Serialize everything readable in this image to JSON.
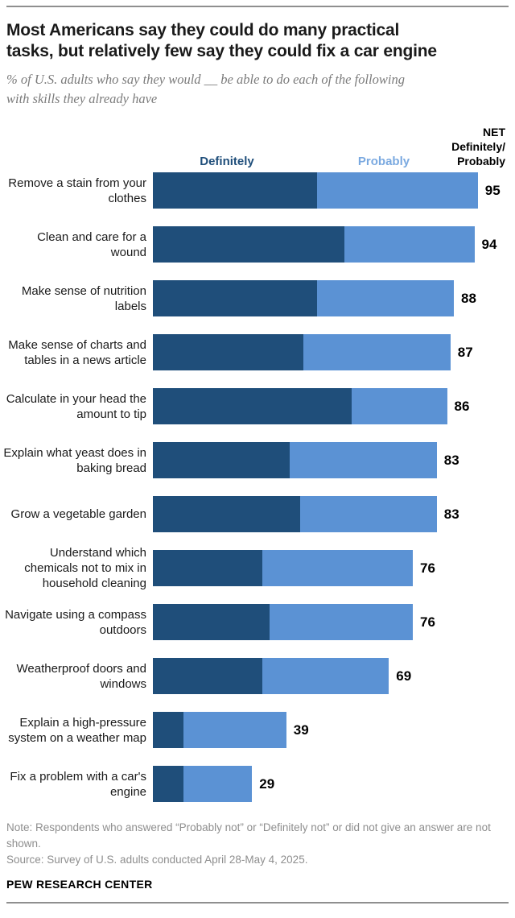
{
  "header": {
    "title_lines": [
      "Most Americans say they could do many practical",
      "tasks, but relatively few say they could fix a car engine"
    ],
    "subtitle_lines": [
      "% of U.S. adults who say they would __ be able to do each of the following",
      "with skills they already have"
    ]
  },
  "legend": {
    "definitely_label": "Definitely",
    "probably_label": "Probably",
    "net_label_lines": [
      "NET",
      "Definitely/",
      "Probably"
    ]
  },
  "chart_data": {
    "type": "bar",
    "stacked": true,
    "orientation": "horizontal",
    "xlim": [
      0,
      100
    ],
    "grid": false,
    "legend_position": "top",
    "categories": [
      "Remove a stain from your clothes",
      "Clean and care for a wound",
      "Make sense of nutrition labels",
      "Make sense of charts and tables in a news article",
      "Calculate in your head the amount to tip",
      "Explain what yeast does in baking bread",
      "Grow a vegetable garden",
      "Understand which chemicals not to mix in household cleaning",
      "Navigate using a compass outdoors",
      "Weatherproof doors and windows",
      "Explain a high-pressure system on a weather map",
      "Fix a problem with a car's engine"
    ],
    "series": [
      {
        "name": "Definitely",
        "color": "#1f4e7a",
        "values": [
          48,
          56,
          48,
          44,
          58,
          40,
          43,
          32,
          34,
          32,
          9,
          9
        ]
      },
      {
        "name": "Probably",
        "color": "#5b92d4",
        "values": [
          47,
          38,
          40,
          43,
          28,
          43,
          40,
          44,
          42,
          37,
          30,
          20
        ]
      }
    ],
    "net_values": [
      95,
      94,
      88,
      87,
      86,
      83,
      83,
      76,
      76,
      69,
      39,
      29
    ],
    "colors": {
      "definitely": "#1f4e7a",
      "probably_bar": "#5b92d4",
      "probably_legend": "#7aa9e0"
    }
  },
  "footer": {
    "note": "Note: Respondents who answered “Probably not” or “Definitely not” or did not give an answer are not shown.",
    "source": "Source: Survey of U.S. adults conducted April 28-May 4, 2025.",
    "brand": "PEW RESEARCH CENTER"
  }
}
